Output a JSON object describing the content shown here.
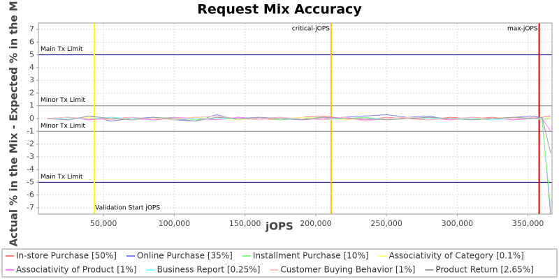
{
  "chart_data": {
    "type": "line",
    "title": "Request Mix Accuracy",
    "x_label": "jOPS",
    "y_label": "Actual % in the Mix - Expected % in the Mix",
    "xlim": [
      4000,
      367000
    ],
    "ylim": [
      -7.5,
      7.5
    ],
    "xticks": [
      {
        "value": 50000,
        "label": "50,000"
      },
      {
        "value": 100000,
        "label": "100,000"
      },
      {
        "value": 150000,
        "label": "150,000"
      },
      {
        "value": 200000,
        "label": "200,000"
      },
      {
        "value": 250000,
        "label": "250,000"
      },
      {
        "value": 300000,
        "label": "300,000"
      },
      {
        "value": 350000,
        "label": "350,000"
      }
    ],
    "yticks": [
      -7,
      -6,
      -5,
      -4,
      -3,
      -2,
      -1,
      0,
      1,
      2,
      3,
      4,
      5,
      6,
      7
    ],
    "grid": true,
    "x": [
      10000,
      25000,
      40000,
      55000,
      70000,
      85000,
      100000,
      115000,
      130000,
      145000,
      160000,
      175000,
      190000,
      205000,
      220000,
      235000,
      250000,
      265000,
      280000,
      295000,
      310000,
      325000,
      340000,
      355000,
      360000,
      366000
    ],
    "series": [
      {
        "name": "In-store Purchase [50%]",
        "color": "#ff8080",
        "values": [
          0,
          0.1,
          -0.1,
          0,
          0.1,
          -0.1,
          0,
          0.1,
          -0.1,
          0.1,
          0,
          -0.1,
          0.1,
          0.2,
          0,
          -0.1,
          0.1,
          0,
          -0.1,
          0.1,
          0,
          0.1,
          -0.1,
          0,
          0.1,
          0.2
        ]
      },
      {
        "name": "Online Purchase [35%]",
        "color": "#8080ff",
        "values": [
          0,
          -0.1,
          0.2,
          -0.2,
          0,
          0.1,
          -0.1,
          -0.2,
          0.3,
          -0.1,
          0.1,
          0,
          -0.1,
          0,
          0.1,
          0.2,
          0.3,
          0.1,
          0.2,
          -0.1,
          0.1,
          0,
          0.1,
          0.2,
          0,
          -7.5
        ]
      },
      {
        "name": "Installment Purchase [10%]",
        "color": "#80ff80",
        "values": [
          0,
          0.1,
          0,
          0.1,
          -0.1,
          0,
          0.1,
          -0.1,
          0,
          0,
          0.1,
          -0.1,
          0,
          0.1,
          0,
          0.1,
          -0.1,
          0,
          0.1,
          0,
          -0.1,
          0,
          0.1,
          0,
          -0.1,
          -7
        ]
      },
      {
        "name": "Associativity of Category [0.1%]",
        "color": "#ffff80",
        "values": [
          0,
          0,
          0.1,
          0,
          -0.1,
          0,
          0,
          0.1,
          0,
          -0.1,
          0,
          0,
          0.1,
          0,
          -0.1,
          0,
          0,
          0.1,
          0,
          -0.1,
          0,
          0,
          0.1,
          0,
          0,
          0.1
        ]
      },
      {
        "name": "Associativity of Product [1%]",
        "color": "#ff80ff",
        "values": [
          0,
          0.1,
          -0.1,
          0.1,
          0,
          -0.1,
          0.1,
          0,
          -0.1,
          0.1,
          0,
          0.1,
          -0.1,
          0,
          0.1,
          -0.1,
          0,
          0.1,
          0,
          -0.1,
          0.1,
          0,
          -0.1,
          0.1,
          0,
          -1
        ]
      },
      {
        "name": "Business Report [0.25%]",
        "color": "#80ffff",
        "values": [
          0,
          0,
          0,
          0.1,
          0,
          0,
          -0.1,
          0,
          0,
          0,
          0.1,
          0,
          0,
          -0.1,
          0,
          0,
          0,
          0.1,
          0,
          0,
          0,
          -0.1,
          0,
          0,
          0,
          0
        ]
      },
      {
        "name": "Customer Buying Behavior [1%]",
        "color": "#ffc0c0",
        "values": [
          0,
          0.1,
          0,
          -0.1,
          0.1,
          0,
          -0.1,
          0.1,
          0.2,
          0,
          -0.1,
          0.1,
          0,
          -0.1,
          0.1,
          -0.2,
          0,
          0.1,
          -0.1,
          0,
          0.1,
          0,
          0,
          0.1,
          -0.1,
          0
        ]
      },
      {
        "name": "Product Return [2.65%]",
        "color": "#a0a0a0",
        "values": [
          0,
          -0.1,
          0.2,
          0,
          -0.1,
          0.1,
          0,
          -0.2,
          0.1,
          0,
          0.1,
          0,
          -0.1,
          0.1,
          0,
          0,
          -0.1,
          0,
          0.1,
          0,
          -0.1,
          0,
          0.1,
          0,
          0.1,
          -2.7
        ]
      }
    ],
    "horizontal_markers": [
      {
        "label": "Main Tx Limit",
        "value": 5,
        "color": "#000080"
      },
      {
        "label": "Minor Tx Limit",
        "value": 1,
        "color": "#808080"
      },
      {
        "label": "Minor Tx Limit",
        "value": -1,
        "color": "#808080"
      },
      {
        "label": "Main Tx Limit",
        "value": -5,
        "color": "#000080"
      }
    ],
    "vertical_markers": [
      {
        "label": "Validation Start jOPS",
        "value": 43600,
        "color": "#ffff00"
      },
      {
        "label": "critical-jOPS",
        "value": 210900,
        "color": "#ffc000"
      },
      {
        "label": "max-jOPS",
        "value": 357900,
        "color": "#dd0000"
      }
    ]
  }
}
